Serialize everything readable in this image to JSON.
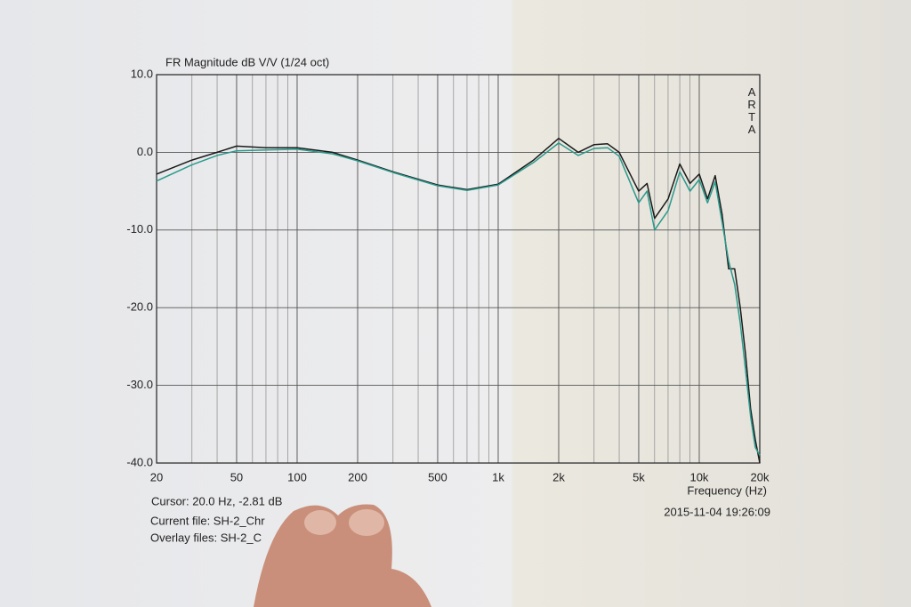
{
  "chart_data": {
    "type": "line",
    "title": "FR Magnitude dB V/V (1/24 oct)",
    "side_label": "ARTA",
    "x_label": "Frequency (Hz)",
    "timestamp": "2015-11-04  19:26:09",
    "cursor": "Cursor: 20.0 Hz, -2.81 dB",
    "current_file": "Current file: SH-2_Chr",
    "overlay_files": "Overlay files: SH-2_C",
    "x_scale": "log",
    "grid": true,
    "x": [
      20,
      30,
      40,
      50,
      70,
      100,
      150,
      200,
      300,
      500,
      700,
      1000,
      1500,
      2000,
      2500,
      3000,
      3500,
      4000,
      5000,
      5500,
      6000,
      7000,
      8000,
      9000,
      10000,
      11000,
      12000,
      13000,
      14000,
      15000,
      16000,
      17000,
      18000,
      19000,
      20000
    ],
    "series": [
      {
        "color": "#1a1a1a",
        "values": [
          -2.8,
          -1,
          0,
          0.8,
          0.6,
          0.6,
          0,
          -1,
          -2.5,
          -4.2,
          -4.8,
          -4.1,
          -1,
          1.8,
          0,
          1,
          1.1,
          0,
          -5,
          -4,
          -8.5,
          -6,
          -1.5,
          -4,
          -2.8,
          -6,
          -3,
          -8,
          -15,
          -15,
          -20,
          -26,
          -33,
          -37,
          -40
        ]
      },
      {
        "color": "#2a9a8c",
        "values": [
          -3.7,
          -1.6,
          -0.4,
          0.2,
          0.3,
          0.4,
          -0.2,
          -1.1,
          -2.6,
          -4.3,
          -4.9,
          -4.2,
          -1.3,
          1.2,
          -0.4,
          0.5,
          0.6,
          -0.5,
          -6.5,
          -5,
          -10,
          -7.5,
          -2.5,
          -5,
          -3.5,
          -6.5,
          -3.8,
          -9,
          -14,
          -17,
          -22,
          -28,
          -34,
          -38,
          -39
        ]
      }
    ],
    "xlim": [
      20,
      20000
    ],
    "ylim": [
      -40,
      10
    ],
    "xticks": [
      20,
      50,
      100,
      200,
      500,
      {
        "value": 1000,
        "label": "1k"
      },
      {
        "value": 2000,
        "label": "2k"
      },
      {
        "value": 5000,
        "label": "5k"
      },
      {
        "value": 10000,
        "label": "10k"
      },
      {
        "value": 20000,
        "label": "20k"
      }
    ],
    "yticks": [
      {
        "value": -40,
        "label": "-40.0"
      },
      {
        "value": -30,
        "label": "-30.0"
      },
      {
        "value": -20,
        "label": "-20.0"
      },
      {
        "value": -10,
        "label": "-10.0"
      },
      {
        "value": 0,
        "label": "0.0"
      },
      {
        "value": 10,
        "label": "10.0"
      }
    ]
  }
}
